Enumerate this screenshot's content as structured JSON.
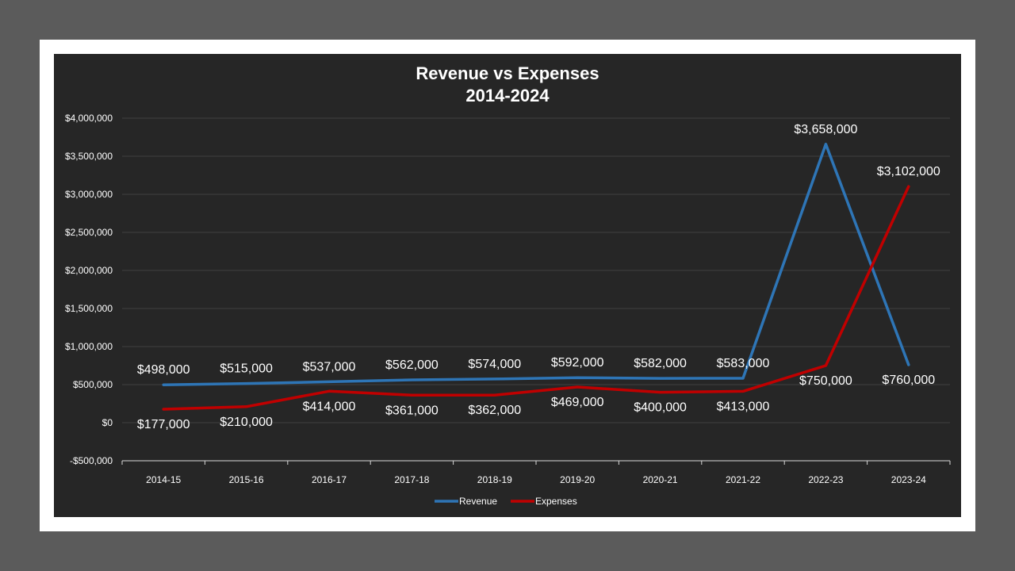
{
  "chart_data": {
    "type": "line",
    "title": "Revenue vs Expenses",
    "subtitle": "2014-2024",
    "categories": [
      "2014-15",
      "2015-16",
      "2016-17",
      "2017-18",
      "2018-19",
      "2019-20",
      "2020-21",
      "2021-22",
      "2022-23",
      "2023-24"
    ],
    "series": [
      {
        "name": "Revenue",
        "color": "#2e75b6",
        "values": [
          498000,
          515000,
          537000,
          562000,
          574000,
          592000,
          582000,
          583000,
          3658000,
          760000
        ],
        "labels": [
          "$498,000",
          "$515,000",
          "$537,000",
          "$562,000",
          "$574,000",
          "$592,000",
          "$582,000",
          "$583,000",
          "$3,658,000",
          "$760,000"
        ]
      },
      {
        "name": "Expenses",
        "color": "#c00000",
        "values": [
          177000,
          210000,
          414000,
          361000,
          362000,
          469000,
          400000,
          413000,
          750000,
          3102000
        ],
        "labels": [
          "$177,000",
          "$210,000",
          "$414,000",
          "$361,000",
          "$362,000",
          "$469,000",
          "$400,000",
          "$413,000",
          "$750,000",
          "$3,102,000"
        ]
      }
    ],
    "yticks": [
      {
        "value": -500000,
        "label": "-$500,000"
      },
      {
        "value": 0,
        "label": "$0"
      },
      {
        "value": 500000,
        "label": "$500,000"
      },
      {
        "value": 1000000,
        "label": "$1,000,000"
      },
      {
        "value": 1500000,
        "label": "$1,500,000"
      },
      {
        "value": 2000000,
        "label": "$2,000,000"
      },
      {
        "value": 2500000,
        "label": "$2,500,000"
      },
      {
        "value": 3000000,
        "label": "$3,000,000"
      },
      {
        "value": 3500000,
        "label": "$3,500,000"
      },
      {
        "value": 4000000,
        "label": "$4,000,000"
      }
    ],
    "ylim": [
      -500000,
      4000000
    ],
    "grid": true,
    "legend_position": "bottom",
    "background_color": "#262626",
    "grid_color": "#404040",
    "text_color": "#ffffff"
  }
}
